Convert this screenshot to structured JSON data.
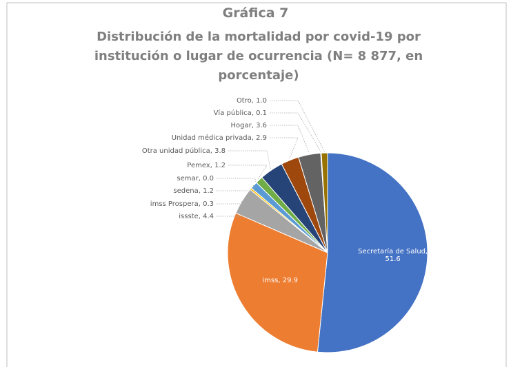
{
  "chart_data": {
    "type": "pie",
    "title": "Gráfica 7",
    "subtitle": "Distribución de la mortalidad por covid-19 por institución o lugar de ocurrencia (N= 8 877, en porcentaje)",
    "categories": [
      "Secretaría de Salud",
      "imss",
      "issste",
      "imss Prospera",
      "sedena",
      "semar",
      "Pemex",
      "Otra unidad pública",
      "Unidad médica privada",
      "Hogar",
      "Vía pública",
      "Otro"
    ],
    "values": [
      51.6,
      29.9,
      4.4,
      0.3,
      1.2,
      0.0,
      1.2,
      3.8,
      2.9,
      3.6,
      0.1,
      1.0
    ],
    "value_labels": [
      "Secretaría de Salud, 51.6",
      "imss, 29.9",
      "issste, 4.4",
      "imss Prospera, 0.3",
      "sedena, 1.2",
      "semar, 0.0",
      "Pemex, 1.2",
      "Otra unidad pública, 3.8",
      "Unidad médica privada, 2.9",
      "Hogar, 3.6",
      "Vía pública, 0.1",
      "Otro, 1.0"
    ],
    "colors": [
      "#4472c4",
      "#ed7d31",
      "#a5a5a5",
      "#ffc000",
      "#5b9bd5",
      "#70ad47",
      "#70ad47",
      "#264478",
      "#9e480e",
      "#636363",
      "#997300",
      "#997300"
    ]
  }
}
